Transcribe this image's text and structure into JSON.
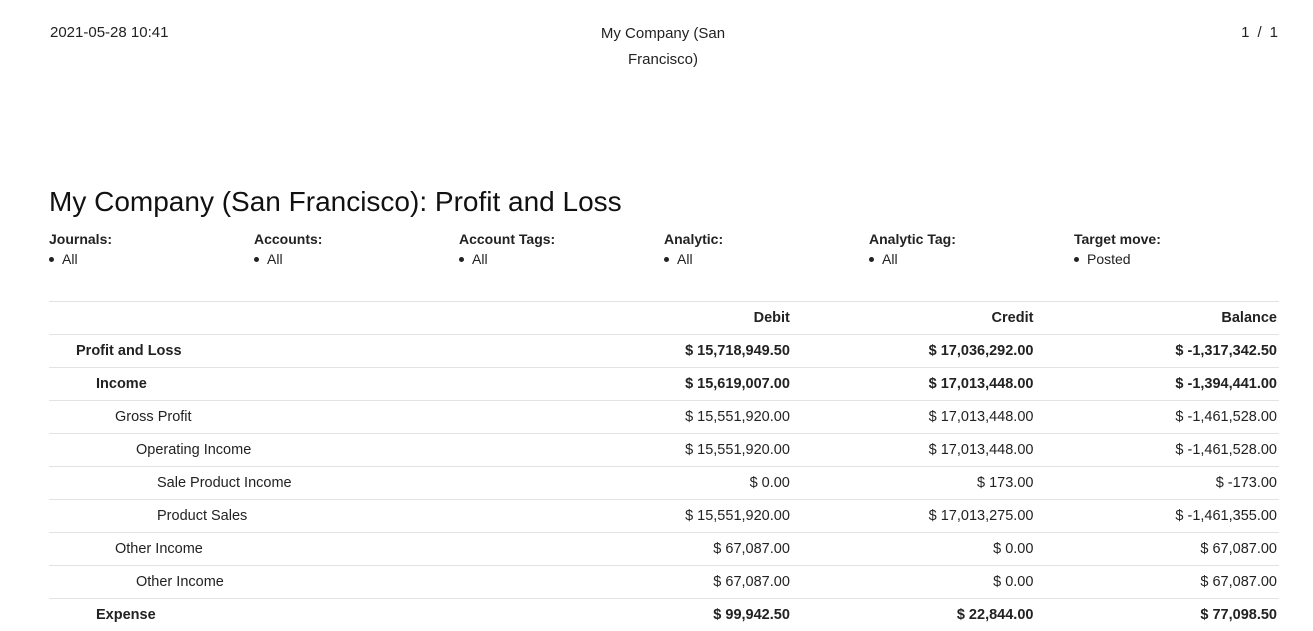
{
  "header": {
    "datetime": "2021-05-28 10:41",
    "company_line1": "My Company (San",
    "company_line2": "Francisco)",
    "page_current": "1",
    "page_separator": "/",
    "page_total": "1"
  },
  "report": {
    "title": "My Company (San Francisco): Profit and Loss"
  },
  "filters": [
    {
      "label": "Journals:",
      "value": "All"
    },
    {
      "label": "Accounts:",
      "value": "All"
    },
    {
      "label": "Account Tags:",
      "value": "All"
    },
    {
      "label": "Analytic:",
      "value": "All"
    },
    {
      "label": "Analytic Tag:",
      "value": "All"
    },
    {
      "label": "Target move:",
      "value": "Posted"
    }
  ],
  "table": {
    "columns": [
      "",
      "Debit",
      "Credit",
      "Balance"
    ],
    "rows": [
      {
        "name": "Profit and Loss",
        "debit": "$ 15,718,949.50",
        "credit": "$ 17,036,292.00",
        "balance": "$ -1,317,342.50"
      },
      {
        "name": "Income",
        "debit": "$ 15,619,007.00",
        "credit": "$ 17,013,448.00",
        "balance": "$ -1,394,441.00"
      },
      {
        "name": "Gross Profit",
        "debit": "$ 15,551,920.00",
        "credit": "$ 17,013,448.00",
        "balance": "$ -1,461,528.00"
      },
      {
        "name": "Operating Income",
        "debit": "$ 15,551,920.00",
        "credit": "$ 17,013,448.00",
        "balance": "$ -1,461,528.00"
      },
      {
        "name": "Sale Product Income",
        "debit": "$ 0.00",
        "credit": "$ 173.00",
        "balance": "$ -173.00"
      },
      {
        "name": "Product Sales",
        "debit": "$ 15,551,920.00",
        "credit": "$ 17,013,275.00",
        "balance": "$ -1,461,355.00"
      },
      {
        "name": "Other Income",
        "debit": "$ 67,087.00",
        "credit": "$ 0.00",
        "balance": "$ 67,087.00"
      },
      {
        "name": "Other Income",
        "debit": "$ 67,087.00",
        "credit": "$ 0.00",
        "balance": "$ 67,087.00"
      },
      {
        "name": "Expense",
        "debit": "$ 99,942.50",
        "credit": "$ 22,844.00",
        "balance": "$ 77,098.50"
      }
    ]
  }
}
